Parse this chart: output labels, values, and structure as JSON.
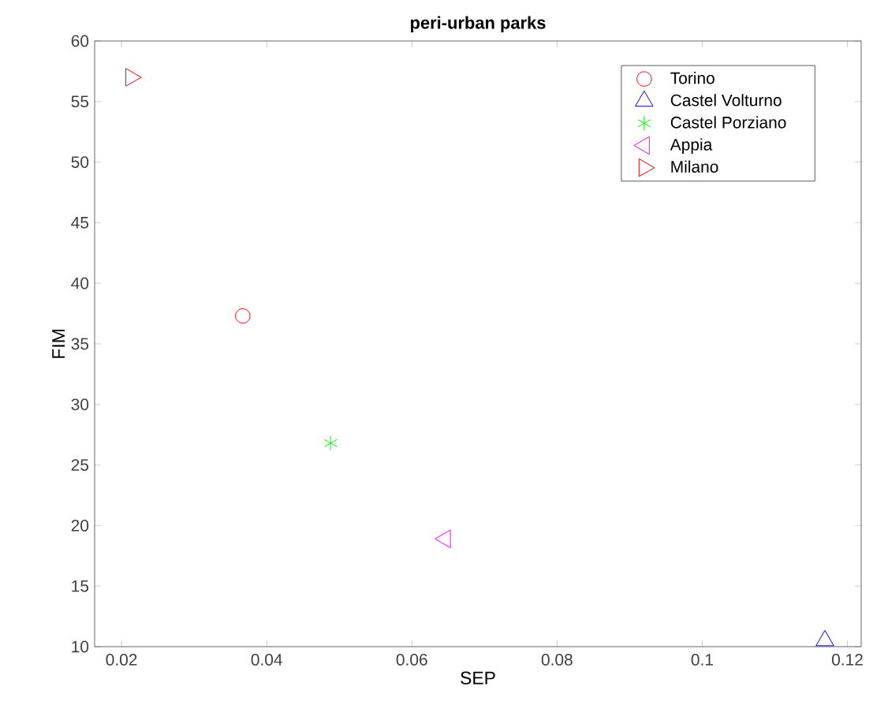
{
  "chart_data": {
    "type": "scatter",
    "title": "peri-urban parks",
    "xlabel": "SEP",
    "ylabel": "FIM",
    "xlim": [
      0.0163,
      0.1219
    ],
    "ylim": [
      10,
      60
    ],
    "xticks": [
      0.02,
      0.04,
      0.06,
      0.08,
      0.1,
      0.12
    ],
    "yticks": [
      10,
      15,
      20,
      25,
      30,
      35,
      40,
      45,
      50,
      55,
      60
    ],
    "grid": false,
    "legend": "top right",
    "series": [
      {
        "name": "Torino",
        "color": "#ff0000",
        "marker": "circle",
        "x": [
          0.0367
        ],
        "values": [
          37.3
        ]
      },
      {
        "name": "Castel Volturno",
        "color": "#0000ff",
        "marker": "triangle",
        "x": [
          0.1169
        ],
        "values": [
          10.5
        ]
      },
      {
        "name": "Castel Porziano",
        "color": "#00ff00",
        "marker": "cross",
        "x": [
          0.0488
        ],
        "values": [
          26.8
        ]
      },
      {
        "name": "Appia",
        "color": "#ff00ff",
        "marker": "triangle-left",
        "x": [
          0.0646
        ],
        "values": [
          18.9
        ]
      },
      {
        "name": "Milano",
        "color": "#ff0000",
        "marker": "triangle-right",
        "x": [
          0.0213
        ],
        "values": [
          57.0
        ]
      }
    ]
  }
}
